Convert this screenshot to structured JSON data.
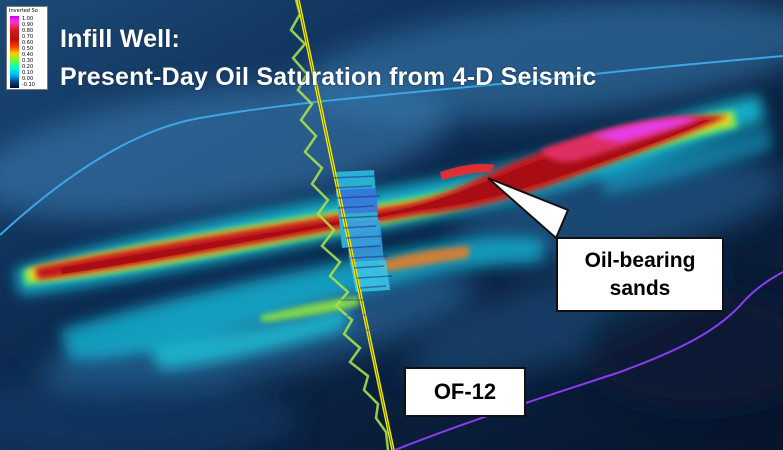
{
  "title": {
    "line1": "Infill Well:",
    "line2": "Present-Day Oil Saturation from 4-D Seismic"
  },
  "legend": {
    "title": "Inverted So",
    "ticks": [
      "1.00",
      "0.90",
      "0.80",
      "0.70",
      "0.60",
      "0.50",
      "0.40",
      "0.30",
      "0.20",
      "0.10",
      "0.00",
      "-0.10"
    ]
  },
  "callouts": {
    "oil": "Oil-bearing sands",
    "well": "OF-12"
  },
  "colors": {
    "background": "#0a1a33",
    "low_saturation": "#00e5ff",
    "high_saturation": "#b8121a",
    "peak_saturation": "#e020ff",
    "horizon_upper": "#39a8e6",
    "horizon_lower": "#8a3cf0",
    "well_trajectory": "#e8e000"
  }
}
